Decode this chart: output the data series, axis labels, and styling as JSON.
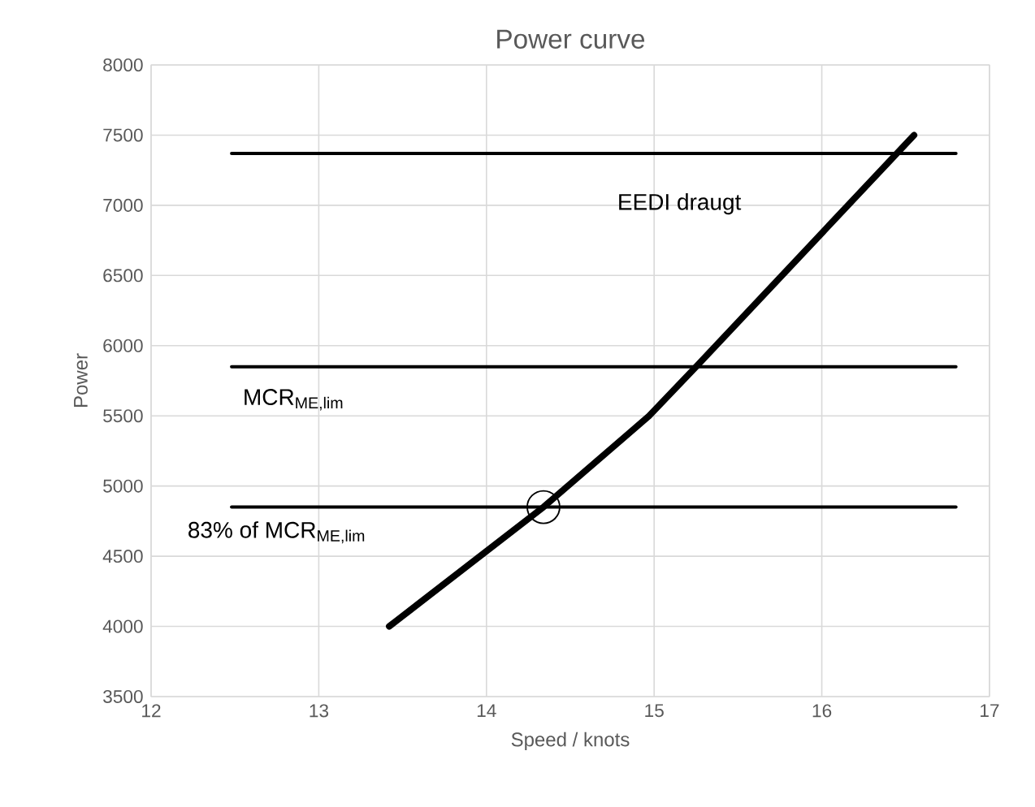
{
  "chart_data": {
    "type": "line",
    "title": "Power curve",
    "xlabel": "Speed / knots",
    "ylabel": "Power",
    "xlim": [
      12,
      17
    ],
    "xticks": [
      12,
      13,
      14,
      15,
      16,
      17
    ],
    "ylim": [
      3500,
      8000
    ],
    "yticks": [
      3500,
      4000,
      4500,
      5000,
      5500,
      6000,
      6500,
      7000,
      7500,
      8000
    ],
    "grid": true,
    "series": [
      {
        "color": "#000000",
        "marker": "none",
        "x": [
          13.42,
          14.34,
          14.97,
          15.25,
          16.55
        ],
        "values": [
          4000,
          4850,
          5500,
          5850,
          7500
        ]
      },
      {
        "color": "#000000",
        "marker": "none",
        "x": [
          12.48,
          16.8
        ],
        "values": [
          7370,
          7370
        ]
      },
      {
        "color": "#000000",
        "marker": "none",
        "x": [
          12.48,
          16.8
        ],
        "values": [
          5850,
          5850
        ]
      },
      {
        "color": "#000000",
        "marker": "none",
        "x": [
          12.48,
          16.8
        ],
        "values": [
          4850,
          4850
        ]
      },
      {
        "type": "scatter",
        "color": "#000000",
        "marker": "circle",
        "x": [
          14.34
        ],
        "values": [
          4850
        ]
      }
    ],
    "annotations": [
      "EEDI draugt",
      "MCR$_{ME,lim}$",
      "83% of MCR$_{ME,lim}$"
    ]
  }
}
